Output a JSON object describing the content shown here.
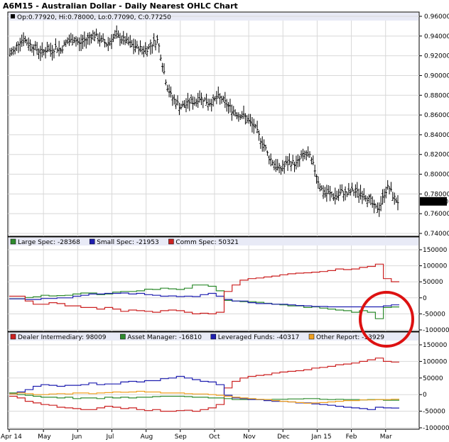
{
  "title": "A6M15 - Australian Dollar - Daily Nearest OHLC Chart",
  "ohlc_label": "Op:0.77920, Hi:0.78000, Lo:0.77090, C:0.77250",
  "last_price_label": "0.77250",
  "colors": {
    "price": "#000000",
    "large_spec": "#2e8b2e",
    "small_spec": "#1f1fb0",
    "comm_spec": "#cc2222",
    "dealer": "#cc2222",
    "asset_manager": "#2e8b2e",
    "leveraged": "#1f1fb0",
    "other": "#f0a020",
    "annotation_circle": "#dd1111",
    "header_band": "#e8eaf6",
    "grid": "#d8d8d8"
  },
  "x_axis": {
    "labels": [
      "Apr 14",
      "May",
      "Jun",
      "Jul",
      "Aug",
      "Sep",
      "Oct",
      "Nov",
      "Dec",
      "Jan 15",
      "Feb",
      "Mar"
    ]
  },
  "legends": {
    "panel2": [
      {
        "label": "Large Spec: -28368",
        "color_key": "large_spec"
      },
      {
        "label": "Small Spec: -21953",
        "color_key": "small_spec"
      },
      {
        "label": "Comm Spec: 50321",
        "color_key": "comm_spec"
      }
    ],
    "panel3": [
      {
        "label": "Dealer Intermediary: 98009",
        "color_key": "dealer"
      },
      {
        "label": "Asset Manager: -16810",
        "color_key": "asset_manager"
      },
      {
        "label": "Leveraged Funds: -40317",
        "color_key": "leveraged"
      },
      {
        "label": "Other Report: -13929",
        "color_key": "other"
      }
    ]
  },
  "chart_data": [
    {
      "type": "ohlc",
      "title": "A6M15 - Australian Dollar - Daily Nearest OHLC Chart",
      "ylim": [
        0.74,
        0.96
      ],
      "y_ticks": [
        "0.74000",
        "0.76000",
        "0.78000",
        "0.80000",
        "0.82000",
        "0.84000",
        "0.86000",
        "0.88000",
        "0.90000",
        "0.92000",
        "0.94000",
        "0.96000"
      ],
      "x_categories": [
        "Apr 14",
        "May",
        "Jun",
        "Jul",
        "Aug",
        "Sep",
        "Oct",
        "Nov",
        "Dec",
        "Jan 15",
        "Feb",
        "Mar"
      ],
      "close_path": [
        0.922,
        0.925,
        0.935,
        0.937,
        0.932,
        0.93,
        0.926,
        0.923,
        0.927,
        0.925,
        0.929,
        0.926,
        0.933,
        0.935,
        0.937,
        0.932,
        0.935,
        0.938,
        0.942,
        0.938,
        0.935,
        0.932,
        0.937,
        0.94,
        0.938,
        0.935,
        0.932,
        0.929,
        0.928,
        0.926,
        0.928,
        0.933,
        0.936,
        0.912,
        0.89,
        0.878,
        0.873,
        0.868,
        0.87,
        0.874,
        0.873,
        0.878,
        0.876,
        0.872,
        0.874,
        0.878,
        0.876,
        0.87,
        0.866,
        0.862,
        0.86,
        0.858,
        0.852,
        0.848,
        0.838,
        0.83,
        0.818,
        0.812,
        0.806,
        0.806,
        0.811,
        0.812,
        0.81,
        0.817,
        0.82,
        0.817,
        0.805,
        0.79,
        0.78,
        0.781,
        0.778,
        0.778,
        0.782,
        0.78,
        0.783,
        0.782,
        0.781,
        0.778,
        0.774,
        0.765,
        0.766,
        0.78,
        0.788,
        0.777,
        0.7725
      ],
      "last": 0.7725
    },
    {
      "type": "line",
      "ylim": [
        -100000,
        150000
      ],
      "y_ticks": [
        "-100000",
        "-50000",
        "0",
        "50000",
        "100000",
        "150000"
      ],
      "series": [
        {
          "name": "Large Spec",
          "color_key": "large_spec",
          "values": [
            -3000,
            -3000,
            1000,
            3000,
            8000,
            6000,
            7000,
            8000,
            12000,
            15000,
            15000,
            10000,
            12000,
            18000,
            20000,
            20000,
            22000,
            27000,
            26000,
            30000,
            28000,
            26000,
            30000,
            40000,
            40000,
            36000,
            22000,
            -8000,
            -10000,
            -12000,
            -12000,
            -14000,
            -17000,
            -20000,
            -22000,
            -25000,
            -25000,
            -30000,
            -28000,
            -32000,
            -35000,
            -38000,
            -40000,
            -45000,
            -40000,
            -45000,
            -65000,
            -30000,
            -28368
          ]
        },
        {
          "name": "Small Spec",
          "color_key": "small_spec",
          "values": [
            -3000,
            -3000,
            -5000,
            -5000,
            -2000,
            -2000,
            0,
            0,
            5000,
            8000,
            12000,
            12000,
            14000,
            14000,
            15000,
            12000,
            14000,
            10000,
            8000,
            5000,
            6000,
            4000,
            5000,
            4000,
            10000,
            14000,
            5000,
            -5000,
            -10000,
            -10000,
            -15000,
            -18000,
            -18000,
            -20000,
            -20000,
            -22000,
            -24000,
            -25000,
            -27000,
            -27000,
            -28000,
            -28000,
            -28000,
            -28000,
            -28000,
            -28000,
            -28000,
            -25000,
            -21953
          ]
        },
        {
          "name": "Comm Spec",
          "color_key": "comm_spec",
          "values": [
            5000,
            5000,
            -10000,
            -20000,
            -20000,
            -15000,
            -18000,
            -25000,
            -25000,
            -30000,
            -30000,
            -35000,
            -30000,
            -35000,
            -42000,
            -38000,
            -40000,
            -42000,
            -45000,
            -40000,
            -38000,
            -40000,
            -45000,
            -50000,
            -48000,
            -50000,
            -45000,
            20000,
            40000,
            55000,
            60000,
            62000,
            65000,
            68000,
            72000,
            75000,
            77000,
            78000,
            80000,
            82000,
            85000,
            90000,
            88000,
            90000,
            95000,
            98000,
            105000,
            60000,
            50321
          ]
        }
      ]
    },
    {
      "type": "line",
      "ylim": [
        -100000,
        150000
      ],
      "y_ticks": [
        "-100000",
        "-50000",
        "0",
        "50000",
        "100000",
        "150000"
      ],
      "series": [
        {
          "name": "Dealer Intermediary",
          "color_key": "dealer",
          "values": [
            -5000,
            -10000,
            -20000,
            -25000,
            -30000,
            -32000,
            -38000,
            -40000,
            -42000,
            -45000,
            -45000,
            -40000,
            -35000,
            -38000,
            -42000,
            -40000,
            -45000,
            -48000,
            -45000,
            -50000,
            -50000,
            -48000,
            -47000,
            -50000,
            -45000,
            -40000,
            -30000,
            20000,
            40000,
            50000,
            55000,
            58000,
            60000,
            65000,
            68000,
            70000,
            72000,
            75000,
            80000,
            82000,
            85000,
            90000,
            92000,
            95000,
            100000,
            105000,
            110000,
            100000,
            98009
          ]
        },
        {
          "name": "Asset Manager",
          "color_key": "asset_manager",
          "values": [
            5000,
            0,
            -2000,
            -5000,
            -8000,
            -8000,
            -10000,
            -8000,
            -12000,
            -10000,
            -10000,
            -12000,
            -8000,
            -10000,
            -8000,
            -10000,
            -8000,
            -8000,
            -6000,
            -5000,
            -5000,
            -5000,
            -6000,
            -8000,
            -8000,
            -10000,
            -10000,
            -12000,
            -15000,
            -15000,
            -14000,
            -15000,
            -15000,
            -14000,
            -14000,
            -13000,
            -13000,
            -12000,
            -12000,
            -14000,
            -15000,
            -14000,
            -15000,
            -15000,
            -16000,
            -15000,
            -15000,
            -17000,
            -16810
          ]
        },
        {
          "name": "Leveraged Funds",
          "color_key": "leveraged",
          "values": [
            2000,
            8000,
            15000,
            25000,
            30000,
            28000,
            25000,
            28000,
            28000,
            30000,
            35000,
            30000,
            32000,
            32000,
            38000,
            40000,
            38000,
            42000,
            42000,
            48000,
            50000,
            55000,
            50000,
            45000,
            40000,
            38000,
            30000,
            -2000,
            -10000,
            -12000,
            -15000,
            -15000,
            -18000,
            -20000,
            -20000,
            -22000,
            -25000,
            -25000,
            -28000,
            -30000,
            -32000,
            -35000,
            -38000,
            -40000,
            -42000,
            -45000,
            -38000,
            -40000,
            -40317
          ]
        },
        {
          "name": "Other Report",
          "color_key": "other",
          "values": [
            2000,
            5000,
            3000,
            0,
            0,
            2000,
            3000,
            2000,
            5000,
            5000,
            3000,
            5000,
            6000,
            8000,
            7000,
            8000,
            10000,
            8000,
            8000,
            5000,
            5000,
            5000,
            3000,
            2000,
            2000,
            0,
            -2000,
            -5000,
            -8000,
            -10000,
            -12000,
            -14000,
            -15000,
            -18000,
            -20000,
            -22000,
            -24000,
            -26000,
            -25000,
            -24000,
            -22000,
            -20000,
            -18000,
            -18000,
            -16000,
            -16000,
            -15000,
            -15000,
            -13929
          ]
        }
      ]
    }
  ]
}
